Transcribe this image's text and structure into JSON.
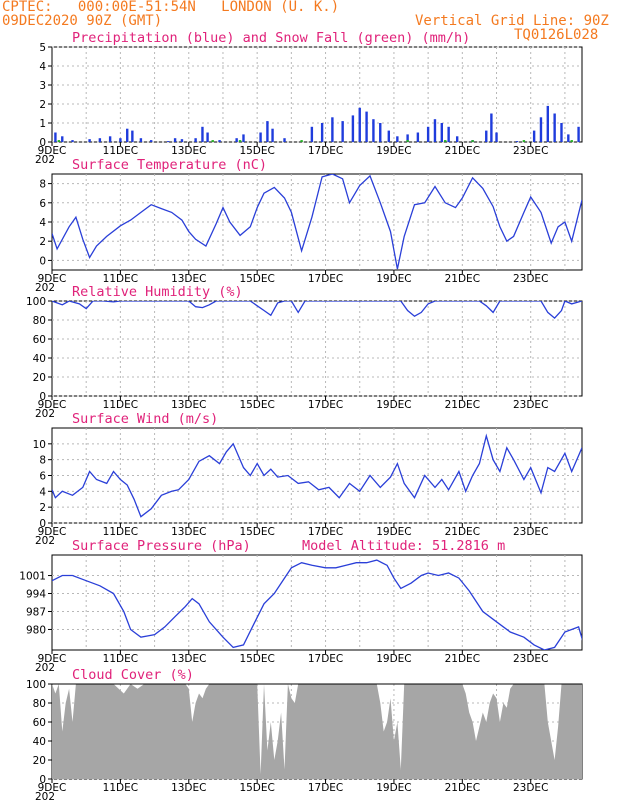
{
  "header": {
    "line1_left": "CPTEC:   000:00E-51:54N   LONDON (U. K.)",
    "line2_left": "09DEC2020 90Z (GMT)",
    "line2_right": "Vertical Grid Line: 90Z",
    "line3_right": "TQ0126L028"
  },
  "colors": {
    "header": "#f47a20",
    "title": "#e0227a",
    "line": "#2a3fd8",
    "precip": "#1f3cdc",
    "snow": "#22b022",
    "cloud": "#a6a6a6"
  },
  "date_labels": [
    "9DEC",
    "11DEC",
    "13DEC",
    "15DEC",
    "17DEC",
    "19DEC",
    "21DEC",
    "23DEC"
  ],
  "year_fragment": "202",
  "chart_data": [
    {
      "id": "precip",
      "type": "bar",
      "title": "Precipitation (blue) and Snow Fall (green) (mm/h)",
      "xlabel": "",
      "ylabel": "",
      "ylim": [
        0,
        5
      ],
      "yticks": [
        0,
        1,
        2,
        3,
        4,
        5
      ],
      "grid": true,
      "series": [
        {
          "name": "Precipitation",
          "color": "#1f3cdc",
          "points": [
            [
              0.1,
              0.5
            ],
            [
              0.3,
              0.3
            ],
            [
              0.6,
              0.1
            ],
            [
              1.1,
              0.15
            ],
            [
              1.4,
              0.2
            ],
            [
              1.7,
              0.3
            ],
            [
              2.0,
              0.2
            ],
            [
              2.2,
              0.7
            ],
            [
              2.35,
              0.6
            ],
            [
              2.6,
              0.2
            ],
            [
              2.9,
              0.1
            ],
            [
              3.4,
              0.05
            ],
            [
              3.6,
              0.2
            ],
            [
              3.8,
              0.15
            ],
            [
              4.2,
              0.2
            ],
            [
              4.4,
              0.8
            ],
            [
              4.55,
              0.5
            ],
            [
              4.9,
              0.1
            ],
            [
              5.4,
              0.2
            ],
            [
              5.6,
              0.4
            ],
            [
              6.1,
              0.5
            ],
            [
              6.3,
              1.1
            ],
            [
              6.45,
              0.7
            ],
            [
              6.8,
              0.2
            ],
            [
              7.6,
              0.8
            ],
            [
              7.9,
              1.0
            ],
            [
              8.2,
              1.3
            ],
            [
              8.5,
              1.1
            ],
            [
              8.8,
              1.4
            ],
            [
              9.0,
              1.8
            ],
            [
              9.2,
              1.6
            ],
            [
              9.4,
              1.2
            ],
            [
              9.6,
              1.0
            ],
            [
              9.85,
              0.6
            ],
            [
              10.1,
              0.3
            ],
            [
              10.4,
              0.4
            ],
            [
              10.7,
              0.5
            ],
            [
              11.0,
              0.8
            ],
            [
              11.2,
              1.2
            ],
            [
              11.4,
              1.0
            ],
            [
              11.6,
              0.8
            ],
            [
              11.85,
              0.3
            ],
            [
              12.3,
              0.1
            ],
            [
              12.7,
              0.6
            ],
            [
              12.85,
              1.5
            ],
            [
              13.0,
              0.5
            ],
            [
              13.6,
              0.05
            ],
            [
              14.1,
              0.6
            ],
            [
              14.3,
              1.3
            ],
            [
              14.5,
              1.9
            ],
            [
              14.7,
              1.5
            ],
            [
              14.9,
              1.0
            ],
            [
              15.1,
              0.4
            ],
            [
              15.4,
              0.8
            ],
            [
              15.55,
              0.3
            ]
          ]
        },
        {
          "name": "Snow Fall",
          "color": "#22b022",
          "points": [
            [
              0.2,
              0.1
            ],
            [
              4.7,
              0.1
            ],
            [
              5.5,
              0.1
            ],
            [
              7.3,
              0.1
            ],
            [
              10.4,
              0.1
            ],
            [
              11.5,
              0.1
            ],
            [
              12.3,
              0.1
            ],
            [
              13.8,
              0.1
            ],
            [
              15.2,
              0.1
            ]
          ]
        }
      ]
    },
    {
      "id": "temp",
      "type": "line",
      "title": "Surface Temperature (nC)",
      "xlabel": "",
      "ylabel": "",
      "ylim": [
        -1,
        9
      ],
      "yticks": [
        0,
        2,
        4,
        6,
        8
      ],
      "grid": true,
      "x": [
        0,
        0.15,
        0.5,
        0.7,
        0.9,
        1.1,
        1.3,
        1.6,
        2.0,
        2.3,
        2.6,
        2.9,
        3.2,
        3.5,
        3.8,
        4.0,
        4.2,
        4.5,
        4.8,
        5.0,
        5.2,
        5.5,
        5.8,
        6.0,
        6.2,
        6.5,
        6.8,
        7.0,
        7.3,
        7.6,
        7.9,
        8.2,
        8.5,
        8.7,
        9.0,
        9.3,
        9.6,
        9.9,
        10.1,
        10.3,
        10.6,
        10.9,
        11.2,
        11.5,
        11.8,
        12.0,
        12.3,
        12.6,
        12.9,
        13.1,
        13.3,
        13.5,
        13.8,
        14.0,
        14.3,
        14.6,
        14.8,
        15.0,
        15.2,
        15.5
      ],
      "y": [
        2.8,
        1.2,
        3.5,
        4.5,
        2.2,
        0.3,
        1.5,
        2.5,
        3.6,
        4.2,
        5.0,
        5.8,
        5.4,
        5.0,
        4.2,
        3.0,
        2.2,
        1.5,
        3.8,
        5.5,
        4.0,
        2.6,
        3.5,
        5.5,
        7.0,
        7.6,
        6.5,
        5.0,
        1.0,
        4.5,
        8.7,
        9.0,
        8.5,
        6.0,
        7.8,
        8.8,
        6.0,
        3.0,
        -0.9,
        2.5,
        5.8,
        6.0,
        7.7,
        6.0,
        5.5,
        6.5,
        8.6,
        7.5,
        5.6,
        3.5,
        2.0,
        2.5,
        5.0,
        6.6,
        5.0,
        1.8,
        3.5,
        4.0,
        2.0,
        6.3
      ]
    },
    {
      "id": "rh",
      "type": "line",
      "title": "Relative Humidity (%)",
      "xlabel": "",
      "ylabel": "",
      "ylim": [
        0,
        100
      ],
      "yticks": [
        0,
        20,
        40,
        60,
        80,
        100
      ],
      "grid": true,
      "x": [
        0,
        0.3,
        0.5,
        0.8,
        1.0,
        1.2,
        1.5,
        1.8,
        2.0,
        2.5,
        3.0,
        3.5,
        4.0,
        4.2,
        4.4,
        4.6,
        4.8,
        5.0,
        5.5,
        5.8,
        6.0,
        6.2,
        6.4,
        6.6,
        6.8,
        7.0,
        7.2,
        7.4,
        7.6,
        8.0,
        8.5,
        9.0,
        9.4,
        9.6,
        10.0,
        10.2,
        10.4,
        10.6,
        10.8,
        11.0,
        11.2,
        11.5,
        11.8,
        12.0,
        12.2,
        12.5,
        12.7,
        12.9,
        13.1,
        13.3,
        13.6,
        14.0,
        14.3,
        14.5,
        14.7,
        14.9,
        15.0,
        15.2,
        15.5
      ],
      "y": [
        100,
        96,
        100,
        97,
        92,
        100,
        100,
        99,
        100,
        100,
        100,
        100,
        100,
        94,
        93,
        96,
        100,
        100,
        100,
        100,
        95,
        90,
        85,
        98,
        100,
        100,
        88,
        100,
        100,
        100,
        100,
        100,
        100,
        100,
        100,
        100,
        90,
        84,
        88,
        97,
        100,
        100,
        100,
        100,
        100,
        100,
        95,
        88,
        100,
        100,
        100,
        100,
        100,
        88,
        82,
        90,
        100,
        97,
        100
      ]
    },
    {
      "id": "wind",
      "type": "line",
      "title": "Surface Wind (m/s)",
      "xlabel": "",
      "ylabel": "",
      "ylim": [
        0,
        12
      ],
      "yticks": [
        0,
        2,
        4,
        6,
        8,
        10
      ],
      "grid": true,
      "x": [
        0,
        0.1,
        0.3,
        0.6,
        0.9,
        1.1,
        1.3,
        1.6,
        1.8,
        2.0,
        2.2,
        2.4,
        2.6,
        2.9,
        3.2,
        3.5,
        3.7,
        4.0,
        4.3,
        4.6,
        4.9,
        5.1,
        5.3,
        5.6,
        5.8,
        6.0,
        6.2,
        6.4,
        6.6,
        6.9,
        7.2,
        7.5,
        7.8,
        8.1,
        8.4,
        8.7,
        9.0,
        9.3,
        9.6,
        9.9,
        10.1,
        10.3,
        10.6,
        10.9,
        11.2,
        11.4,
        11.6,
        11.9,
        12.1,
        12.3,
        12.5,
        12.7,
        12.9,
        13.1,
        13.3,
        13.5,
        13.8,
        14.0,
        14.3,
        14.5,
        14.7,
        15.0,
        15.2,
        15.5
      ],
      "y": [
        4.2,
        3.2,
        4.0,
        3.5,
        4.5,
        6.5,
        5.5,
        5.0,
        6.5,
        5.5,
        4.8,
        3.0,
        0.8,
        1.8,
        3.5,
        4.0,
        4.2,
        5.5,
        7.8,
        8.5,
        7.5,
        9.0,
        10.0,
        7.0,
        6.0,
        7.5,
        6.0,
        6.8,
        5.8,
        6.0,
        5.0,
        5.2,
        4.2,
        4.5,
        3.2,
        5.0,
        4.0,
        6.0,
        4.5,
        5.8,
        7.5,
        5.0,
        3.2,
        6.0,
        4.5,
        5.5,
        4.2,
        6.5,
        4.0,
        6.0,
        7.5,
        11.0,
        8.0,
        6.5,
        9.5,
        8.0,
        5.5,
        7.0,
        3.8,
        7.0,
        6.5,
        8.8,
        6.5,
        9.5
      ]
    },
    {
      "id": "pressure",
      "type": "line",
      "title": "Surface Pressure (hPa)",
      "subtitle": "Model Altitude: 51.2816 m",
      "xlabel": "",
      "ylabel": "",
      "ylim": [
        972,
        1009
      ],
      "yticks": [
        980,
        987,
        994,
        1001
      ],
      "grid": true,
      "x": [
        0,
        0.3,
        0.6,
        1.0,
        1.4,
        1.8,
        2.1,
        2.3,
        2.6,
        3.0,
        3.3,
        3.6,
        3.9,
        4.1,
        4.3,
        4.6,
        5.0,
        5.3,
        5.6,
        5.9,
        6.2,
        6.5,
        6.8,
        7.0,
        7.3,
        7.6,
        8.0,
        8.3,
        8.6,
        8.9,
        9.2,
        9.5,
        9.8,
        10.0,
        10.2,
        10.5,
        10.8,
        11.0,
        11.3,
        11.6,
        11.9,
        12.2,
        12.6,
        13.0,
        13.4,
        13.8,
        14.1,
        14.4,
        14.7,
        15.0,
        15.4,
        15.6
      ],
      "y": [
        999,
        1001,
        1001,
        999,
        997,
        994,
        987,
        980,
        977,
        978,
        981,
        985,
        989,
        992,
        990,
        983,
        977,
        973,
        974,
        982,
        990,
        994,
        1000,
        1004,
        1006,
        1005,
        1004,
        1004,
        1005,
        1006,
        1006,
        1007,
        1005,
        1000,
        996,
        998,
        1001,
        1002,
        1001,
        1002,
        1000,
        995,
        987,
        983,
        979,
        977,
        974,
        972,
        973,
        979,
        981,
        972
      ]
    },
    {
      "id": "cloud",
      "type": "area",
      "title": "Cloud Cover (%)",
      "xlabel": "",
      "ylabel": "",
      "ylim": [
        0,
        100
      ],
      "yticks": [
        0,
        20,
        40,
        60,
        80,
        100
      ],
      "grid": true,
      "x": [
        0,
        0.1,
        0.2,
        0.3,
        0.4,
        0.5,
        0.6,
        0.7,
        0.9,
        1.2,
        1.5,
        1.8,
        2.1,
        2.3,
        2.5,
        2.7,
        2.9,
        3.1,
        3.3,
        3.5,
        3.7,
        3.9,
        4.0,
        4.1,
        4.2,
        4.3,
        4.4,
        4.5,
        4.6,
        4.7,
        4.8,
        4.9,
        5.0,
        5.3,
        5.6,
        5.9,
        6.0,
        6.1,
        6.2,
        6.3,
        6.4,
        6.5,
        6.6,
        6.7,
        6.8,
        6.9,
        7.0,
        7.1,
        7.2,
        7.4,
        7.7,
        8.0,
        8.3,
        8.6,
        8.9,
        9.2,
        9.5,
        9.6,
        9.7,
        9.8,
        9.9,
        10.0,
        10.1,
        10.2,
        10.3,
        10.4,
        10.5,
        10.6,
        10.7,
        10.8,
        10.9,
        11.0,
        11.3,
        11.6,
        11.9,
        12.0,
        12.1,
        12.2,
        12.3,
        12.4,
        12.5,
        12.6,
        12.7,
        12.8,
        12.9,
        13.0,
        13.1,
        13.2,
        13.3,
        13.4,
        13.5,
        13.6,
        13.8,
        14.0,
        14.2,
        14.4,
        14.5,
        14.6,
        14.7,
        14.8,
        14.9,
        15.0,
        15.2,
        15.4,
        15.55
      ],
      "y": [
        100,
        90,
        100,
        50,
        80,
        95,
        60,
        100,
        100,
        100,
        100,
        100,
        90,
        100,
        95,
        100,
        100,
        100,
        100,
        100,
        100,
        100,
        95,
        60,
        80,
        90,
        85,
        95,
        100,
        100,
        100,
        100,
        100,
        100,
        100,
        100,
        100,
        5,
        100,
        30,
        60,
        20,
        40,
        70,
        10,
        100,
        85,
        80,
        100,
        100,
        100,
        100,
        100,
        100,
        100,
        100,
        100,
        80,
        50,
        60,
        85,
        40,
        60,
        10,
        100,
        100,
        100,
        100,
        100,
        100,
        100,
        100,
        100,
        100,
        100,
        100,
        90,
        70,
        60,
        40,
        55,
        70,
        60,
        80,
        90,
        85,
        60,
        80,
        75,
        95,
        100,
        100,
        100,
        100,
        100,
        100,
        60,
        40,
        20,
        55,
        100,
        100,
        100,
        100,
        100
      ]
    }
  ]
}
